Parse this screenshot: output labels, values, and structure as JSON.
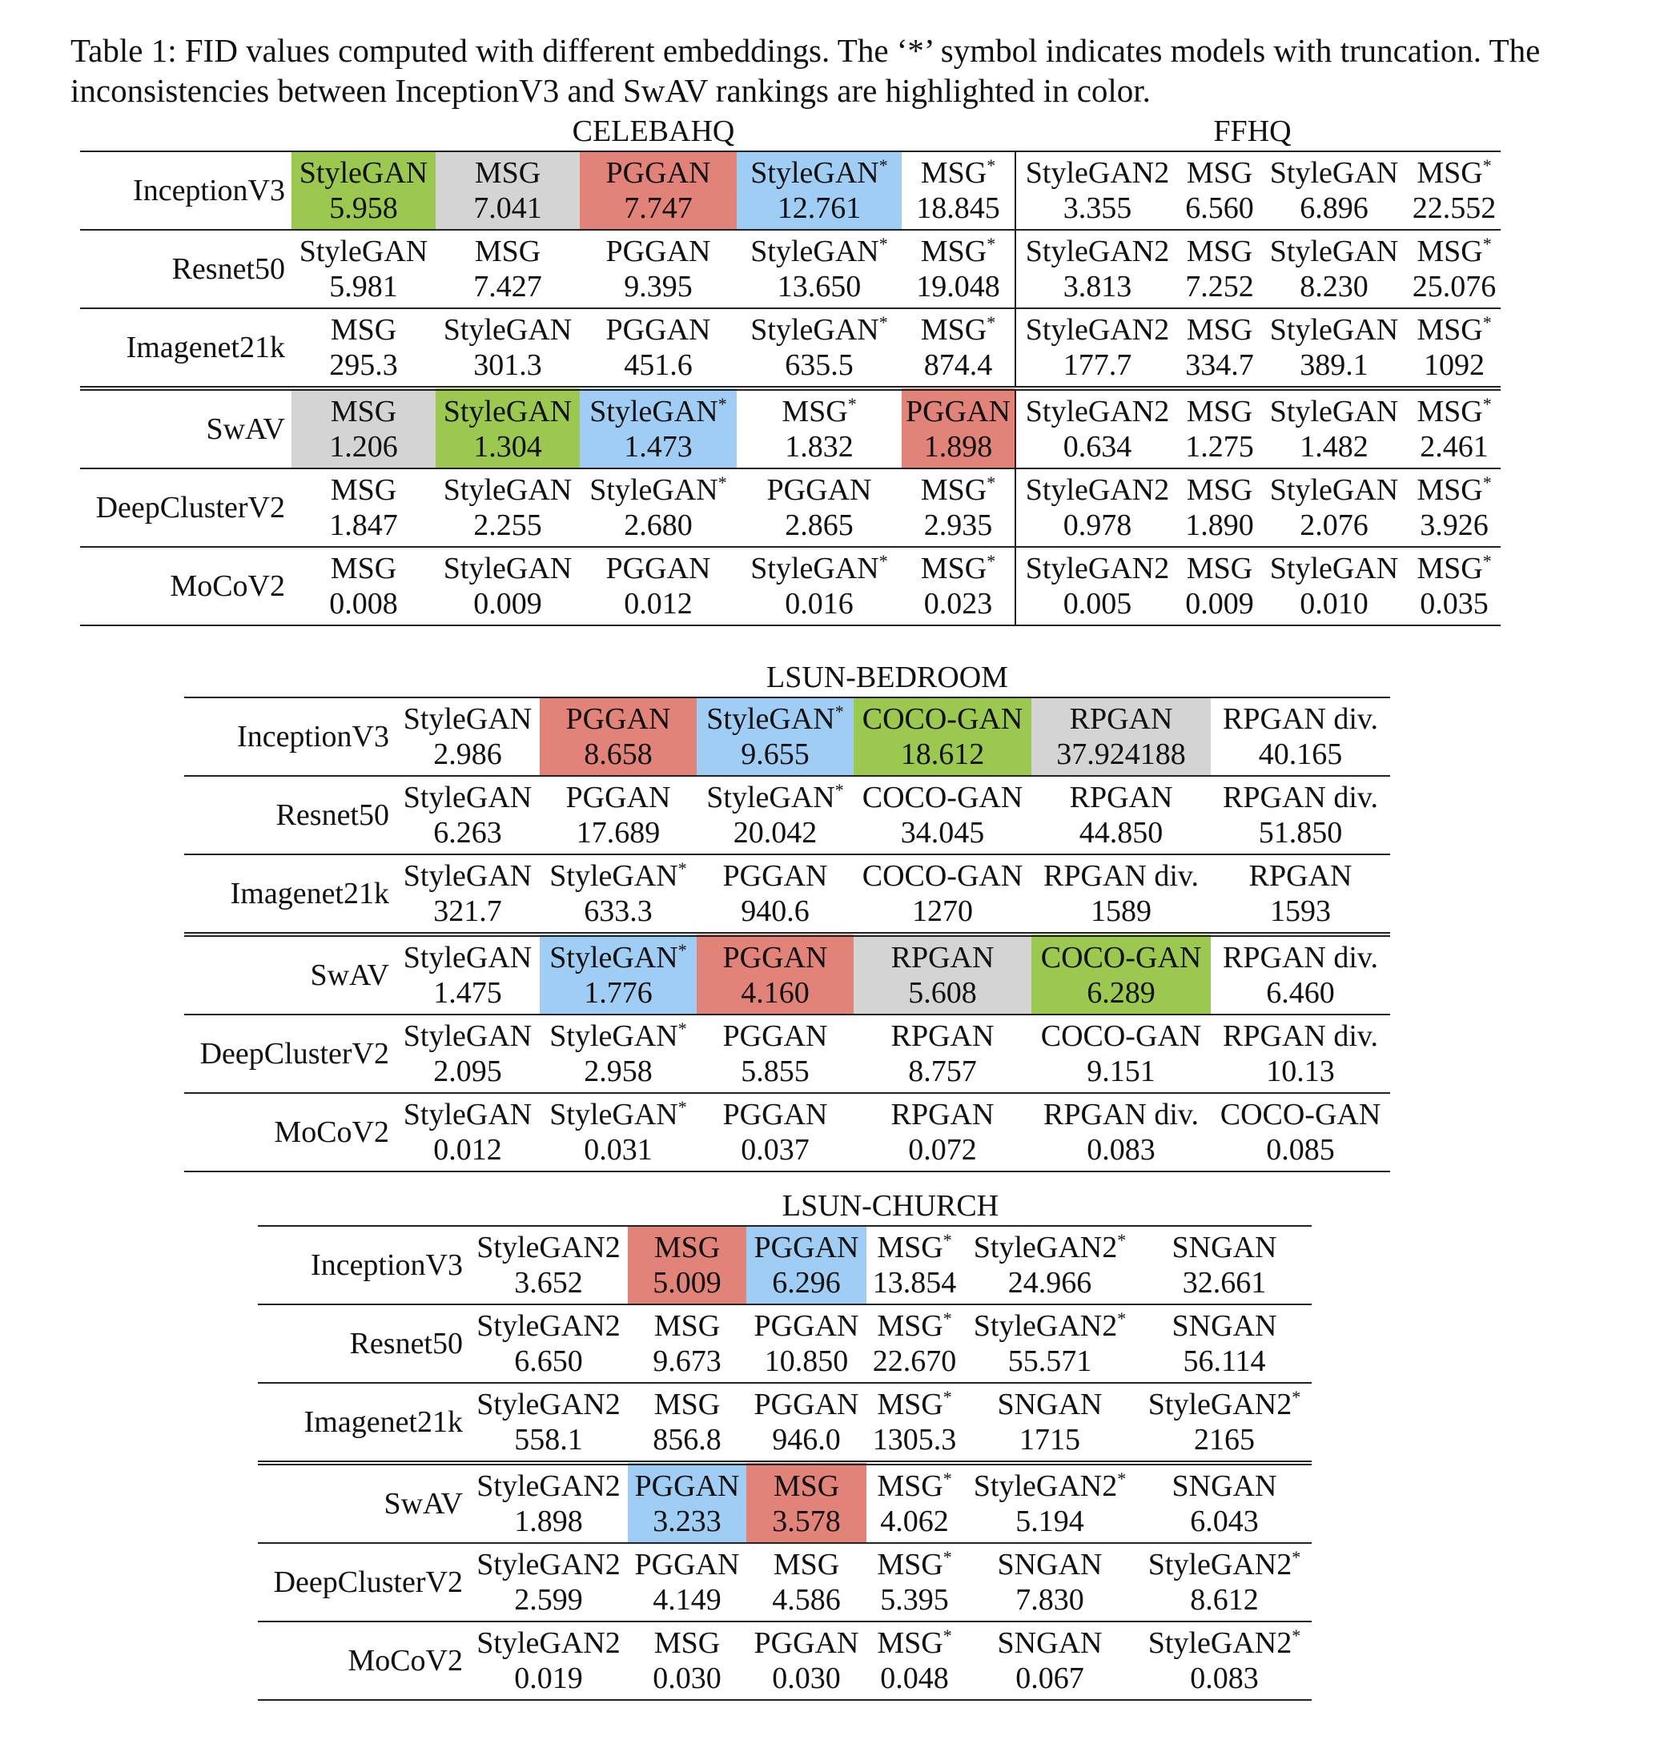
{
  "caption": "Table 1: FID values computed with different embeddings. The ‘*’ symbol indicates models with truncation. The inconsistencies between InceptionV3 and SwAV rankings are highlighted in color.",
  "colors": {
    "green": "#9bc84e",
    "gray": "#d4d4d4",
    "red": "#e18378",
    "blue": "#9fcdf4"
  },
  "celeba_block": {
    "left_title": "CELEBAHQ",
    "right_title": "FFHQ",
    "rows": [
      {
        "emb": "InceptionV3",
        "cells": [
          {
            "name": "StyleGAN",
            "star": false,
            "val": "5.958",
            "color": "green"
          },
          {
            "name": "MSG",
            "star": false,
            "val": "7.041",
            "color": "gray"
          },
          {
            "name": "PGGAN",
            "star": false,
            "val": "7.747",
            "color": "red"
          },
          {
            "name": "StyleGAN",
            "star": true,
            "val": "12.761",
            "color": "blue"
          },
          {
            "name": "MSG",
            "star": true,
            "val": "18.845",
            "color": ""
          },
          {
            "name": "StyleGAN2",
            "star": false,
            "val": "3.355",
            "color": ""
          },
          {
            "name": "MSG",
            "star": false,
            "val": "6.560",
            "color": ""
          },
          {
            "name": "StyleGAN",
            "star": false,
            "val": "6.896",
            "color": ""
          },
          {
            "name": "MSG",
            "star": true,
            "val": "22.552",
            "color": ""
          }
        ]
      },
      {
        "emb": "Resnet50",
        "cells": [
          {
            "name": "StyleGAN",
            "star": false,
            "val": "5.981",
            "color": ""
          },
          {
            "name": "MSG",
            "star": false,
            "val": "7.427",
            "color": ""
          },
          {
            "name": "PGGAN",
            "star": false,
            "val": "9.395",
            "color": ""
          },
          {
            "name": "StyleGAN",
            "star": true,
            "val": "13.650",
            "color": ""
          },
          {
            "name": "MSG",
            "star": true,
            "val": "19.048",
            "color": ""
          },
          {
            "name": "StyleGAN2",
            "star": false,
            "val": "3.813",
            "color": ""
          },
          {
            "name": "MSG",
            "star": false,
            "val": "7.252",
            "color": ""
          },
          {
            "name": "StyleGAN",
            "star": false,
            "val": "8.230",
            "color": ""
          },
          {
            "name": "MSG",
            "star": true,
            "val": "25.076",
            "color": ""
          }
        ]
      },
      {
        "emb": "Imagenet21k",
        "cells": [
          {
            "name": "MSG",
            "star": false,
            "val": "295.3",
            "color": ""
          },
          {
            "name": "StyleGAN",
            "star": false,
            "val": "301.3",
            "color": ""
          },
          {
            "name": "PGGAN",
            "star": false,
            "val": "451.6",
            "color": ""
          },
          {
            "name": "StyleGAN",
            "star": true,
            "val": "635.5",
            "color": ""
          },
          {
            "name": "MSG",
            "star": true,
            "val": "874.4",
            "color": ""
          },
          {
            "name": "StyleGAN2",
            "star": false,
            "val": "177.7",
            "color": ""
          },
          {
            "name": "MSG",
            "star": false,
            "val": "334.7",
            "color": ""
          },
          {
            "name": "StyleGAN",
            "star": false,
            "val": "389.1",
            "color": ""
          },
          {
            "name": "MSG",
            "star": true,
            "val": "1092",
            "color": ""
          }
        ]
      },
      {
        "emb": "SwAV",
        "cells": [
          {
            "name": "MSG",
            "star": false,
            "val": "1.206",
            "color": "gray"
          },
          {
            "name": "StyleGAN",
            "star": false,
            "val": "1.304",
            "color": "green"
          },
          {
            "name": "StyleGAN",
            "star": true,
            "val": "1.473",
            "color": "blue"
          },
          {
            "name": "MSG",
            "star": true,
            "val": "1.832",
            "color": ""
          },
          {
            "name": "PGGAN",
            "star": false,
            "val": "1.898",
            "color": "red"
          },
          {
            "name": "StyleGAN2",
            "star": false,
            "val": "0.634",
            "color": ""
          },
          {
            "name": "MSG",
            "star": false,
            "val": "1.275",
            "color": ""
          },
          {
            "name": "StyleGAN",
            "star": false,
            "val": "1.482",
            "color": ""
          },
          {
            "name": "MSG",
            "star": true,
            "val": "2.461",
            "color": ""
          }
        ]
      },
      {
        "emb": "DeepClusterV2",
        "cells": [
          {
            "name": "MSG",
            "star": false,
            "val": "1.847",
            "color": ""
          },
          {
            "name": "StyleGAN",
            "star": false,
            "val": "2.255",
            "color": ""
          },
          {
            "name": "StyleGAN",
            "star": true,
            "val": "2.680",
            "color": ""
          },
          {
            "name": "PGGAN",
            "star": false,
            "val": "2.865",
            "color": ""
          },
          {
            "name": "MSG",
            "star": true,
            "val": "2.935",
            "color": ""
          },
          {
            "name": "StyleGAN2",
            "star": false,
            "val": "0.978",
            "color": ""
          },
          {
            "name": "MSG",
            "star": false,
            "val": "1.890",
            "color": ""
          },
          {
            "name": "StyleGAN",
            "star": false,
            "val": "2.076",
            "color": ""
          },
          {
            "name": "MSG",
            "star": true,
            "val": "3.926",
            "color": ""
          }
        ]
      },
      {
        "emb": "MoCoV2",
        "cells": [
          {
            "name": "MSG",
            "star": false,
            "val": "0.008",
            "color": ""
          },
          {
            "name": "StyleGAN",
            "star": false,
            "val": "0.009",
            "color": ""
          },
          {
            "name": "PGGAN",
            "star": false,
            "val": "0.012",
            "color": ""
          },
          {
            "name": "StyleGAN",
            "star": true,
            "val": "0.016",
            "color": ""
          },
          {
            "name": "MSG",
            "star": true,
            "val": "0.023",
            "color": ""
          },
          {
            "name": "StyleGAN2",
            "star": false,
            "val": "0.005",
            "color": ""
          },
          {
            "name": "MSG",
            "star": false,
            "val": "0.009",
            "color": ""
          },
          {
            "name": "StyleGAN",
            "star": false,
            "val": "0.010",
            "color": ""
          },
          {
            "name": "MSG",
            "star": true,
            "val": "0.035",
            "color": ""
          }
        ]
      }
    ]
  },
  "bedroom_block": {
    "title": "LSUN-BEDROOM",
    "rows": [
      {
        "emb": "InceptionV3",
        "cells": [
          {
            "name": "StyleGAN",
            "star": false,
            "val": "2.986",
            "color": ""
          },
          {
            "name": "PGGAN",
            "star": false,
            "val": "8.658",
            "color": "red"
          },
          {
            "name": "StyleGAN",
            "star": true,
            "val": "9.655",
            "color": "blue"
          },
          {
            "name": "COCO-GAN",
            "star": false,
            "val": "18.612",
            "color": "green"
          },
          {
            "name": "RPGAN",
            "star": false,
            "val": "37.924188",
            "color": "gray"
          },
          {
            "name": "RPGAN div.",
            "star": false,
            "val": "40.165",
            "color": ""
          }
        ]
      },
      {
        "emb": "Resnet50",
        "cells": [
          {
            "name": "StyleGAN",
            "star": false,
            "val": "6.263",
            "color": ""
          },
          {
            "name": "PGGAN",
            "star": false,
            "val": "17.689",
            "color": ""
          },
          {
            "name": "StyleGAN",
            "star": true,
            "val": "20.042",
            "color": ""
          },
          {
            "name": "COCO-GAN",
            "star": false,
            "val": "34.045",
            "color": ""
          },
          {
            "name": "RPGAN",
            "star": false,
            "val": "44.850",
            "color": ""
          },
          {
            "name": "RPGAN div.",
            "star": false,
            "val": "51.850",
            "color": ""
          }
        ]
      },
      {
        "emb": "Imagenet21k",
        "cells": [
          {
            "name": "StyleGAN",
            "star": false,
            "val": "321.7",
            "color": ""
          },
          {
            "name": "StyleGAN",
            "star": true,
            "val": "633.3",
            "color": ""
          },
          {
            "name": "PGGAN",
            "star": false,
            "val": "940.6",
            "color": ""
          },
          {
            "name": "COCO-GAN",
            "star": false,
            "val": "1270",
            "color": ""
          },
          {
            "name": "RPGAN div.",
            "star": false,
            "val": "1589",
            "color": ""
          },
          {
            "name": "RPGAN",
            "star": false,
            "val": "1593",
            "color": ""
          }
        ]
      },
      {
        "emb": "SwAV",
        "cells": [
          {
            "name": "StyleGAN",
            "star": false,
            "val": "1.475",
            "color": ""
          },
          {
            "name": "StyleGAN",
            "star": true,
            "val": "1.776",
            "color": "blue"
          },
          {
            "name": "PGGAN",
            "star": false,
            "val": "4.160",
            "color": "red"
          },
          {
            "name": "RPGAN",
            "star": false,
            "val": "5.608",
            "color": "gray"
          },
          {
            "name": "COCO-GAN",
            "star": false,
            "val": "6.289",
            "color": "green"
          },
          {
            "name": "RPGAN div.",
            "star": false,
            "val": "6.460",
            "color": ""
          }
        ]
      },
      {
        "emb": "DeepClusterV2",
        "cells": [
          {
            "name": "StyleGAN",
            "star": false,
            "val": "2.095",
            "color": ""
          },
          {
            "name": "StyleGAN",
            "star": true,
            "val": "2.958",
            "color": ""
          },
          {
            "name": "PGGAN",
            "star": false,
            "val": "5.855",
            "color": ""
          },
          {
            "name": "RPGAN",
            "star": false,
            "val": "8.757",
            "color": ""
          },
          {
            "name": "COCO-GAN",
            "star": false,
            "val": "9.151",
            "color": ""
          },
          {
            "name": "RPGAN div.",
            "star": false,
            "val": "10.13",
            "color": ""
          }
        ]
      },
      {
        "emb": "MoCoV2",
        "cells": [
          {
            "name": "StyleGAN",
            "star": false,
            "val": "0.012",
            "color": ""
          },
          {
            "name": "StyleGAN",
            "star": true,
            "val": "0.031",
            "color": ""
          },
          {
            "name": "PGGAN",
            "star": false,
            "val": "0.037",
            "color": ""
          },
          {
            "name": "RPGAN",
            "star": false,
            "val": "0.072",
            "color": ""
          },
          {
            "name": "RPGAN div.",
            "star": false,
            "val": "0.083",
            "color": ""
          },
          {
            "name": "COCO-GAN",
            "star": false,
            "val": "0.085",
            "color": ""
          }
        ]
      }
    ]
  },
  "church_block": {
    "title": "LSUN-CHURCH",
    "rows": [
      {
        "emb": "InceptionV3",
        "cells": [
          {
            "name": "StyleGAN2",
            "star": false,
            "val": "3.652",
            "color": ""
          },
          {
            "name": "MSG",
            "star": false,
            "val": "5.009",
            "color": "red"
          },
          {
            "name": "PGGAN",
            "star": false,
            "val": "6.296",
            "color": "blue"
          },
          {
            "name": "MSG",
            "star": true,
            "val": "13.854",
            "color": ""
          },
          {
            "name": "StyleGAN2",
            "star": true,
            "val": "24.966",
            "color": ""
          },
          {
            "name": "SNGAN",
            "star": false,
            "val": "32.661",
            "color": ""
          }
        ]
      },
      {
        "emb": "Resnet50",
        "cells": [
          {
            "name": "StyleGAN2",
            "star": false,
            "val": "6.650",
            "color": ""
          },
          {
            "name": "MSG",
            "star": false,
            "val": "9.673",
            "color": ""
          },
          {
            "name": "PGGAN",
            "star": false,
            "val": "10.850",
            "color": ""
          },
          {
            "name": "MSG",
            "star": true,
            "val": "22.670",
            "color": ""
          },
          {
            "name": "StyleGAN2",
            "star": true,
            "val": "55.571",
            "color": ""
          },
          {
            "name": "SNGAN",
            "star": false,
            "val": "56.114",
            "color": ""
          }
        ]
      },
      {
        "emb": "Imagenet21k",
        "cells": [
          {
            "name": "StyleGAN2",
            "star": false,
            "val": "558.1",
            "color": ""
          },
          {
            "name": "MSG",
            "star": false,
            "val": "856.8",
            "color": ""
          },
          {
            "name": "PGGAN",
            "star": false,
            "val": "946.0",
            "color": ""
          },
          {
            "name": "MSG",
            "star": true,
            "val": "1305.3",
            "color": ""
          },
          {
            "name": "SNGAN",
            "star": false,
            "val": "1715",
            "color": ""
          },
          {
            "name": "StyleGAN2",
            "star": true,
            "val": "2165",
            "color": ""
          }
        ]
      },
      {
        "emb": "SwAV",
        "cells": [
          {
            "name": "StyleGAN2",
            "star": false,
            "val": "1.898",
            "color": ""
          },
          {
            "name": "PGGAN",
            "star": false,
            "val": "3.233",
            "color": "blue"
          },
          {
            "name": "MSG",
            "star": false,
            "val": "3.578",
            "color": "red"
          },
          {
            "name": "MSG",
            "star": true,
            "val": "4.062",
            "color": ""
          },
          {
            "name": "StyleGAN2",
            "star": true,
            "val": "5.194",
            "color": ""
          },
          {
            "name": "SNGAN",
            "star": false,
            "val": "6.043",
            "color": ""
          }
        ]
      },
      {
        "emb": "DeepClusterV2",
        "cells": [
          {
            "name": "StyleGAN2",
            "star": false,
            "val": "2.599",
            "color": ""
          },
          {
            "name": "PGGAN",
            "star": false,
            "val": "4.149",
            "color": ""
          },
          {
            "name": "MSG",
            "star": false,
            "val": "4.586",
            "color": ""
          },
          {
            "name": "MSG",
            "star": true,
            "val": "5.395",
            "color": ""
          },
          {
            "name": "SNGAN",
            "star": false,
            "val": "7.830",
            "color": ""
          },
          {
            "name": "StyleGAN2",
            "star": true,
            "val": "8.612",
            "color": ""
          }
        ]
      },
      {
        "emb": "MoCoV2",
        "cells": [
          {
            "name": "StyleGAN2",
            "star": false,
            "val": "0.019",
            "color": ""
          },
          {
            "name": "MSG",
            "star": false,
            "val": "0.030",
            "color": ""
          },
          {
            "name": "PGGAN",
            "star": false,
            "val": "0.030",
            "color": ""
          },
          {
            "name": "MSG",
            "star": true,
            "val": "0.048",
            "color": ""
          },
          {
            "name": "SNGAN",
            "star": false,
            "val": "0.067",
            "color": ""
          },
          {
            "name": "StyleGAN2",
            "star": true,
            "val": "0.083",
            "color": ""
          }
        ]
      }
    ]
  }
}
